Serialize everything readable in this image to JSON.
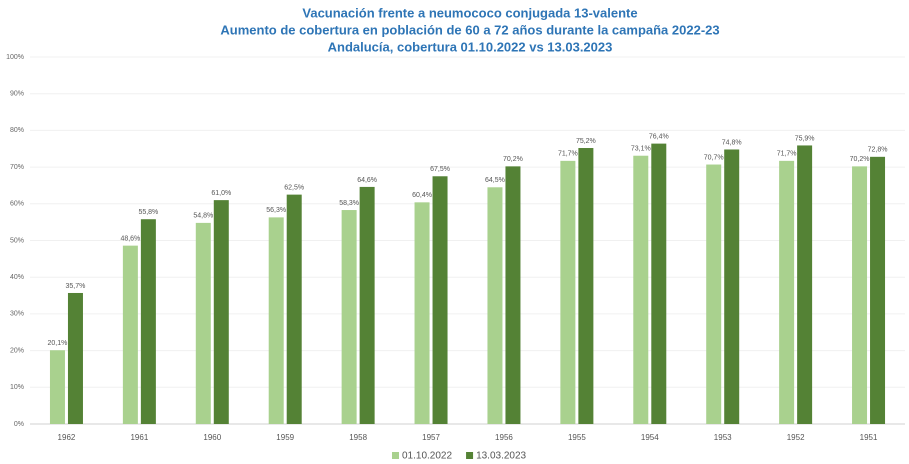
{
  "chart_data": {
    "type": "bar",
    "title": [
      "Vacunación frente a neumococo conjugada 13-valente",
      "Aumento de cobertura en población de 60 a 72 años durante la campaña 2022-23",
      "Andalucía, cobertura 01.10.2022 vs 13.03.2023"
    ],
    "categories": [
      "1962",
      "1961",
      "1960",
      "1959",
      "1958",
      "1957",
      "1956",
      "1955",
      "1954",
      "1953",
      "1952",
      "1951"
    ],
    "series": [
      {
        "name": "01.10.2022",
        "color": "#a9d18e",
        "values": [
          20.1,
          48.6,
          54.8,
          56.3,
          58.3,
          60.4,
          64.5,
          71.7,
          73.1,
          70.7,
          71.7,
          70.2
        ],
        "value_labels": [
          "20,1%",
          "48,6%",
          "54,8%",
          "56,3%",
          "58,3%",
          "60,4%",
          "64,5%",
          "71,7%",
          "73,1%",
          "70,7%",
          "71,7%",
          "70,2%"
        ]
      },
      {
        "name": "13.03.2023",
        "color": "#548235",
        "values": [
          35.7,
          55.8,
          61.0,
          62.5,
          64.6,
          67.5,
          70.2,
          75.2,
          76.4,
          74.8,
          75.9,
          72.8
        ],
        "value_labels": [
          "35,7%",
          "55,8%",
          "61,0%",
          "62,5%",
          "64,6%",
          "67,5%",
          "70,2%",
          "75,2%",
          "76,4%",
          "74,8%",
          "75,9%",
          "72,8%"
        ]
      }
    ],
    "ylim": [
      0,
      100
    ],
    "yticks": [
      {
        "value": 0,
        "label": "0%"
      },
      {
        "value": 10,
        "label": "10%"
      },
      {
        "value": 20,
        "label": "20%"
      },
      {
        "value": 30,
        "label": "30%"
      },
      {
        "value": 40,
        "label": "40%"
      },
      {
        "value": 50,
        "label": "50%"
      },
      {
        "value": 60,
        "label": "60%"
      },
      {
        "value": 70,
        "label": "70%"
      },
      {
        "value": 80,
        "label": "80%"
      },
      {
        "value": 90,
        "label": "90%"
      },
      {
        "value": 100,
        "label": "100%"
      }
    ],
    "grid": true,
    "legend": "bottom"
  }
}
